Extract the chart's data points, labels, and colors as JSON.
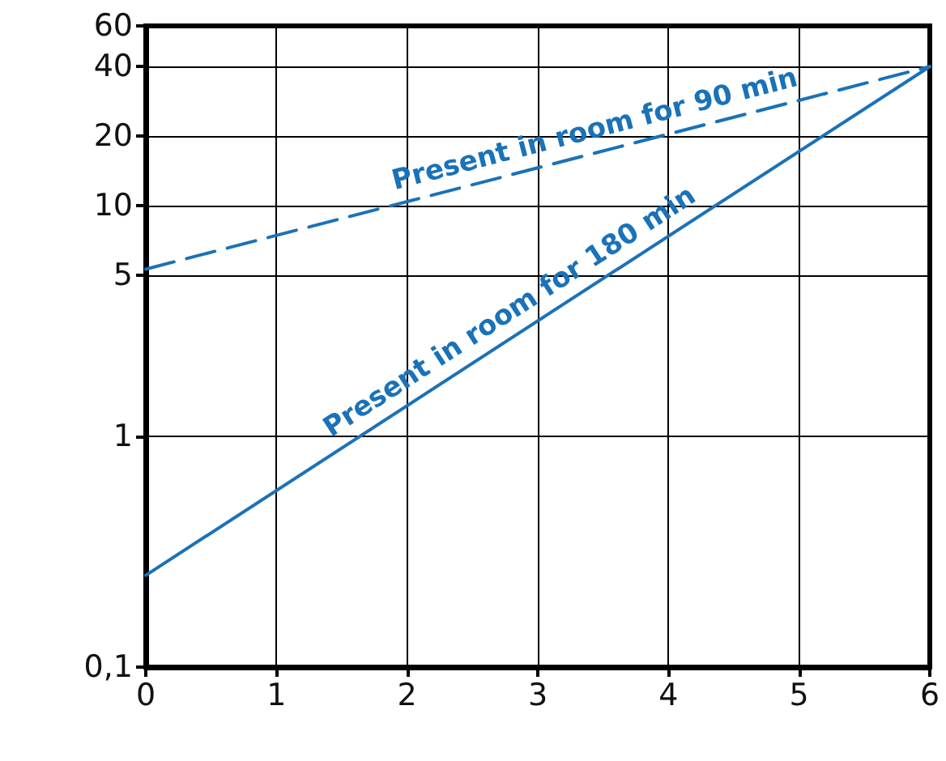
{
  "chart_data": {
    "type": "line",
    "x": [
      0,
      6
    ],
    "xlim": [
      0,
      6
    ],
    "xticks": [
      0,
      1,
      2,
      3,
      4,
      5,
      6
    ],
    "ylim": [
      0.1,
      60
    ],
    "log": "y",
    "yticks": [
      {
        "value": 0.1,
        "label": "0,1"
      },
      1,
      5,
      10,
      20,
      40,
      60
    ],
    "grid": true,
    "legend": false,
    "marker": "none",
    "series": [
      {
        "name": "Present in room for 90 min",
        "color": "#1a72b8",
        "line_style": "dashed",
        "values": [
          5.3,
          40
        ]
      },
      {
        "name": "Present in room for 180 min",
        "color": "#1a72b8",
        "line_style": "solid",
        "values": [
          0.25,
          40
        ]
      }
    ]
  }
}
